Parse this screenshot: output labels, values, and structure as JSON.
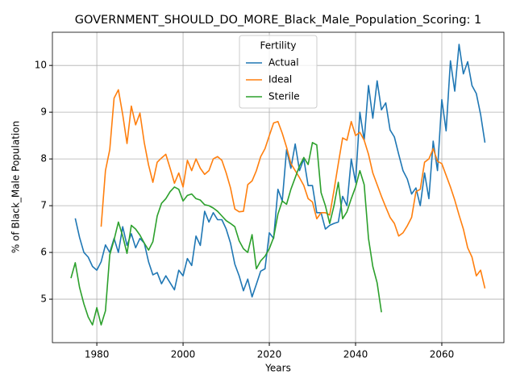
{
  "chart_data": {
    "type": "line",
    "title": "GOVERNMENT_SHOULD_DO_MORE_Black_Male_Population_Scoring: 1",
    "x_label": "Years",
    "y_label": "% of Black_Male Population",
    "legend_title": "Fertility",
    "legend": "upper center",
    "grid": true,
    "xlim": [
      1969.7,
      2074.4
    ],
    "ylim": [
      4.07,
      10.71
    ],
    "xticks": [
      1980,
      2000,
      2020,
      2040,
      2060
    ],
    "yticks": [
      5,
      6,
      7,
      8,
      9,
      10
    ],
    "x": [
      1974,
      1975,
      1976,
      1977,
      1978,
      1979,
      1980,
      1981,
      1982,
      1983,
      1984,
      1985,
      1986,
      1987,
      1988,
      1989,
      1990,
      1991,
      1992,
      1993,
      1994,
      1995,
      1996,
      1997,
      1998,
      1999,
      2000,
      2001,
      2002,
      2003,
      2004,
      2005,
      2006,
      2007,
      2008,
      2009,
      2010,
      2011,
      2012,
      2013,
      2014,
      2015,
      2016,
      2017,
      2018,
      2019,
      2020,
      2021,
      2022,
      2023,
      2024,
      2025,
      2026,
      2027,
      2028,
      2029,
      2030,
      2031,
      2032,
      2033,
      2034,
      2035,
      2036,
      2037,
      2038,
      2039,
      2040,
      2041,
      2042,
      2043,
      2044,
      2045,
      2046,
      2047,
      2048,
      2049,
      2050,
      2051,
      2052,
      2053,
      2054,
      2055,
      2056,
      2057,
      2058,
      2059,
      2060,
      2061,
      2062,
      2063,
      2064,
      2065,
      2066,
      2067,
      2068,
      2069,
      2070
    ],
    "series": [
      {
        "name": "Actual",
        "color": "#1f77b4",
        "values": [
          null,
          6.73,
          6.32,
          6.0,
          5.9,
          5.7,
          5.62,
          5.8,
          6.16,
          6.0,
          6.3,
          6.0,
          6.55,
          6.15,
          6.4,
          6.1,
          6.3,
          6.2,
          5.8,
          5.52,
          5.57,
          5.33,
          5.5,
          5.35,
          5.2,
          5.62,
          5.5,
          5.87,
          5.72,
          6.35,
          6.15,
          6.88,
          6.65,
          6.85,
          6.7,
          6.7,
          6.5,
          6.2,
          5.75,
          5.5,
          5.18,
          5.43,
          5.05,
          5.32,
          5.6,
          5.65,
          6.42,
          6.3,
          7.35,
          7.1,
          8.2,
          7.8,
          8.32,
          7.75,
          8.0,
          7.43,
          7.43,
          6.85,
          6.85,
          6.5,
          6.58,
          6.62,
          6.65,
          7.2,
          7.0,
          8.0,
          7.5,
          9.0,
          8.4,
          9.57,
          8.87,
          9.67,
          9.05,
          9.2,
          8.62,
          8.47,
          8.1,
          7.75,
          7.57,
          7.25,
          7.38,
          7.0,
          7.7,
          7.15,
          8.38,
          7.75,
          9.27,
          8.6,
          10.1,
          9.45,
          10.45,
          9.82,
          10.08,
          9.57,
          9.4,
          8.95,
          8.35
        ]
      },
      {
        "name": "Ideal",
        "color": "#ff7f0e",
        "values": [
          null,
          null,
          null,
          null,
          null,
          null,
          null,
          6.55,
          7.75,
          8.2,
          9.3,
          9.48,
          8.95,
          8.33,
          9.13,
          8.73,
          8.98,
          8.35,
          7.87,
          7.5,
          7.93,
          8.02,
          8.1,
          7.8,
          7.48,
          7.7,
          7.4,
          7.97,
          7.75,
          8.0,
          7.8,
          7.67,
          7.75,
          8.0,
          8.05,
          7.97,
          7.7,
          7.38,
          6.93,
          6.87,
          6.88,
          7.45,
          7.53,
          7.75,
          8.05,
          8.22,
          8.5,
          8.77,
          8.8,
          8.55,
          8.25,
          7.9,
          7.75,
          7.6,
          7.43,
          7.15,
          7.08,
          6.72,
          6.85,
          6.85,
          6.8,
          7.33,
          7.9,
          8.45,
          8.4,
          8.8,
          8.5,
          8.57,
          8.4,
          8.1,
          7.7,
          7.45,
          7.2,
          6.97,
          6.75,
          6.62,
          6.35,
          6.42,
          6.57,
          6.75,
          7.3,
          7.35,
          7.93,
          8.0,
          8.22,
          7.95,
          7.9,
          7.65,
          7.4,
          7.12,
          6.8,
          6.5,
          6.1,
          5.9,
          5.5,
          5.62,
          5.23
        ]
      },
      {
        "name": "Sterile",
        "color": "#2ca02c",
        "values": [
          5.45,
          5.78,
          5.25,
          4.9,
          4.62,
          4.45,
          4.82,
          4.45,
          4.75,
          5.95,
          6.27,
          6.65,
          6.35,
          5.98,
          6.58,
          6.5,
          6.37,
          6.2,
          6.05,
          6.23,
          6.78,
          7.05,
          7.15,
          7.3,
          7.4,
          7.35,
          7.1,
          7.22,
          7.25,
          7.15,
          7.12,
          7.02,
          7.0,
          6.95,
          6.88,
          6.78,
          6.68,
          6.62,
          6.55,
          6.25,
          6.08,
          6.0,
          6.38,
          5.65,
          5.82,
          5.92,
          6.08,
          6.32,
          6.82,
          7.1,
          7.03,
          7.35,
          7.6,
          7.85,
          8.03,
          7.88,
          8.35,
          8.3,
          7.28,
          7.0,
          6.62,
          7.0,
          7.5,
          6.72,
          6.87,
          7.15,
          7.4,
          7.75,
          7.45,
          6.3,
          5.7,
          5.35,
          4.72,
          null,
          null,
          null,
          null,
          null,
          null,
          null,
          null,
          null,
          null,
          null,
          null,
          null,
          null,
          null,
          null,
          null,
          null,
          null,
          null,
          null,
          null,
          null,
          null
        ]
      }
    ]
  }
}
